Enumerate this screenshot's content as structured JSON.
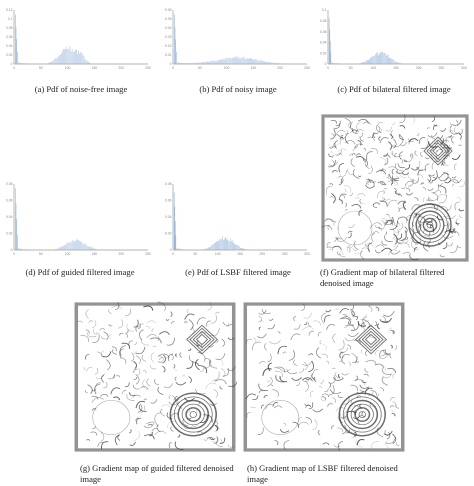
{
  "captions": {
    "a": "(a) Pdf of noise-free image",
    "b": "(b) Pdf of noisy image",
    "c": "(c) Pdf of bilateral filtered image",
    "d": "(d) Pdf of guided filtered image",
    "e": "(e) Pdf of LSBF filtered image",
    "f": "(f) Gradient map of bilateral filtered denoised image",
    "g": "(g) Gradient map of guided filtered denoised image",
    "h": "(h) Gradient map of LSBF filtered denoised image"
  },
  "colors": {
    "bar": "#9ab8dc",
    "axis": "#9a9a9a",
    "gradient_ink": "#3a3a3a"
  },
  "chart_data": [
    {
      "id": "a",
      "type": "bar",
      "xlim": [
        0,
        250
      ],
      "xticks": [
        "0",
        "50",
        "100",
        "150",
        "200",
        "250"
      ],
      "ylim": [
        0,
        0.12
      ],
      "yticks": [
        "0",
        "0.02",
        "0.04",
        "0.06",
        "0.08",
        "0.1",
        "0.12"
      ],
      "profile": {
        "spike_x": 2,
        "spike_y": 0.11,
        "bumps": [
          {
            "center": 100,
            "width": 22,
            "height": 0.035
          },
          {
            "center": 125,
            "width": 10,
            "height": 0.015
          }
        ]
      }
    },
    {
      "id": "b",
      "type": "bar",
      "xlim": [
        0,
        250
      ],
      "xticks": [
        "0",
        "50",
        "100",
        "150",
        "200",
        "250"
      ],
      "ylim": [
        0,
        0.06
      ],
      "yticks": [
        "0",
        "0.01",
        "0.02",
        "0.03",
        "0.04",
        "0.05",
        "0.06"
      ],
      "profile": {
        "spike_x": 2,
        "spike_y": 0.055,
        "bumps": [
          {
            "center": 120,
            "width": 55,
            "height": 0.007
          }
        ]
      }
    },
    {
      "id": "c",
      "type": "bar",
      "xlim": [
        0,
        300
      ],
      "xticks": [
        "0",
        "50",
        "100",
        "150",
        "200",
        "250",
        "300"
      ],
      "ylim": [
        0,
        0.1
      ],
      "yticks": [
        "0",
        "0.02",
        "0.04",
        "0.06",
        "0.08",
        "0.1"
      ],
      "profile": {
        "spike_x": 2,
        "spike_y": 0.085,
        "bumps": [
          {
            "center": 115,
            "width": 28,
            "height": 0.02
          }
        ]
      }
    },
    {
      "id": "d",
      "type": "bar",
      "xlim": [
        0,
        250
      ],
      "xticks": [
        "0",
        "50",
        "100",
        "150",
        "200",
        "250"
      ],
      "ylim": [
        0,
        0.08
      ],
      "yticks": [
        "0",
        "0.02",
        "0.04",
        "0.06",
        "0.08"
      ],
      "profile": {
        "spike_x": 2,
        "spike_y": 0.075,
        "bumps": [
          {
            "center": 115,
            "width": 25,
            "height": 0.012
          }
        ]
      }
    },
    {
      "id": "e",
      "type": "bar",
      "xlim": [
        0,
        300
      ],
      "xticks": [
        "0",
        "50",
        "100",
        "150",
        "200",
        "250",
        "300"
      ],
      "ylim": [
        0,
        0.08
      ],
      "yticks": [
        "0",
        "0.02",
        "0.04",
        "0.06",
        "0.08"
      ],
      "profile": {
        "spike_x": 2,
        "spike_y": 0.07,
        "bumps": [
          {
            "center": 115,
            "width": 28,
            "height": 0.015
          }
        ]
      }
    }
  ]
}
